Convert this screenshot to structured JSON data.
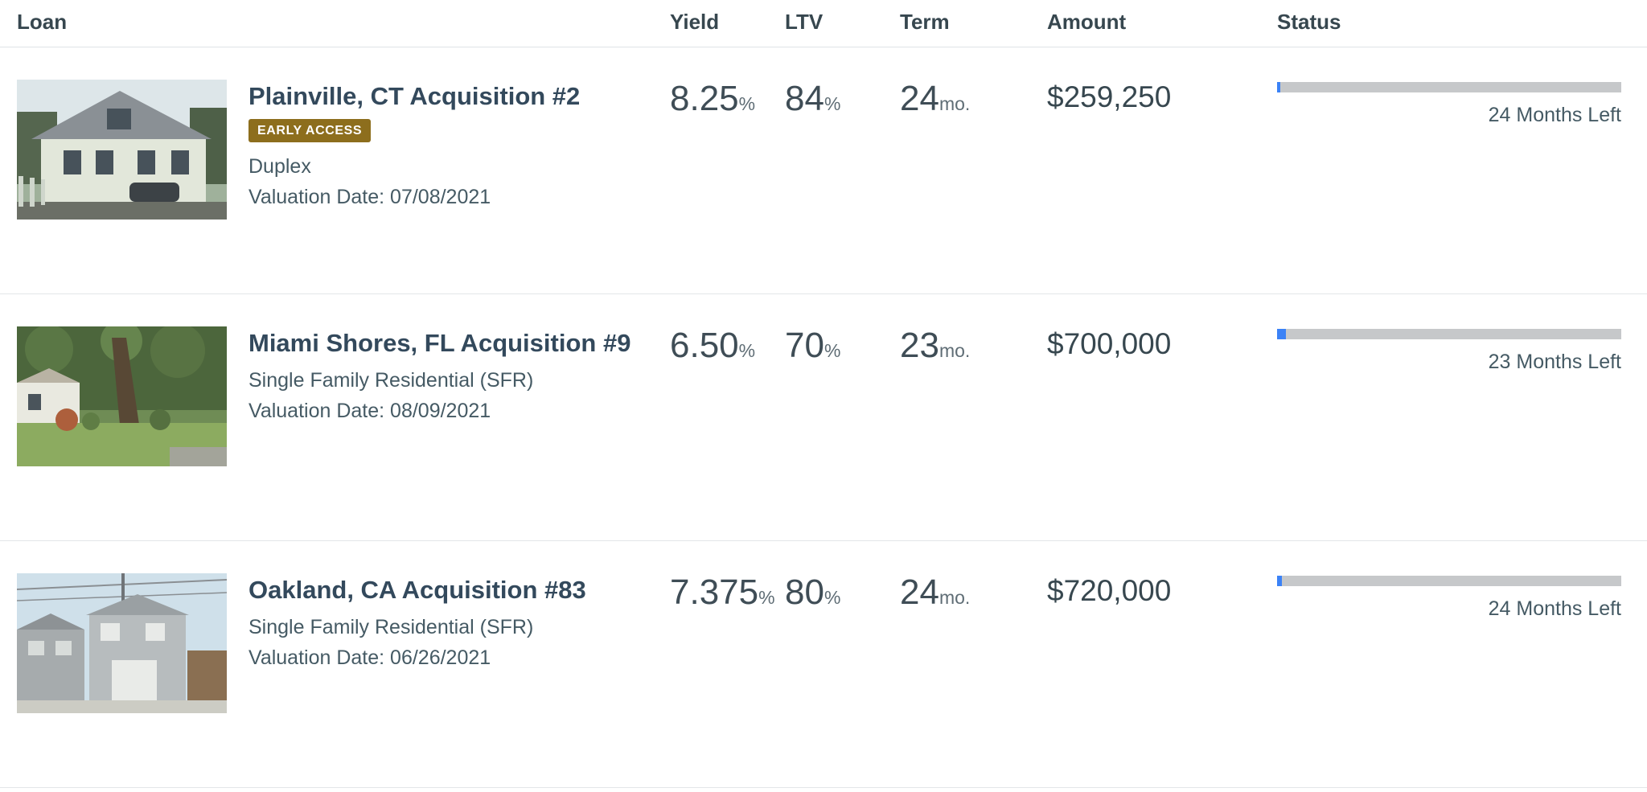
{
  "header": {
    "loan": "Loan",
    "yield": "Yield",
    "ltv": "LTV",
    "term": "Term",
    "amount": "Amount",
    "status": "Status"
  },
  "colors": {
    "badge_bg": "#8d6e1d",
    "progress_fill": "#3b82f6",
    "progress_track": "#c6c8ca",
    "title_text": "#33495c"
  },
  "rows": [
    {
      "title": "Plainville, CT Acquisition #2",
      "badge": "EARLY ACCESS",
      "property_type": "Duplex",
      "valuation_date": "Valuation Date: 07/08/2021",
      "yield_value": "8.25",
      "yield_unit": "%",
      "ltv_value": "84",
      "ltv_unit": "%",
      "term_value": "24",
      "term_unit": "mo.",
      "amount": "$259,250",
      "status_label": "24 Months Left",
      "progress_percent": 0.9
    },
    {
      "title": "Miami Shores, FL Acquisition #9",
      "badge": "",
      "property_type": "Single Family Residential (SFR)",
      "valuation_date": "Valuation Date: 08/09/2021",
      "yield_value": "6.50",
      "yield_unit": "%",
      "ltv_value": "70",
      "ltv_unit": "%",
      "term_value": "23",
      "term_unit": "mo.",
      "amount": "$700,000",
      "status_label": "23 Months Left",
      "progress_percent": 2.6
    },
    {
      "title": "Oakland, CA Acquisition #83",
      "badge": "",
      "property_type": "Single Family Residential (SFR)",
      "valuation_date": "Valuation Date: 06/26/2021",
      "yield_value": "7.375",
      "yield_unit": "%",
      "ltv_value": "80",
      "ltv_unit": "%",
      "term_value": "24",
      "term_unit": "mo.",
      "amount": "$720,000",
      "status_label": "24 Months Left",
      "progress_percent": 1.3
    }
  ]
}
